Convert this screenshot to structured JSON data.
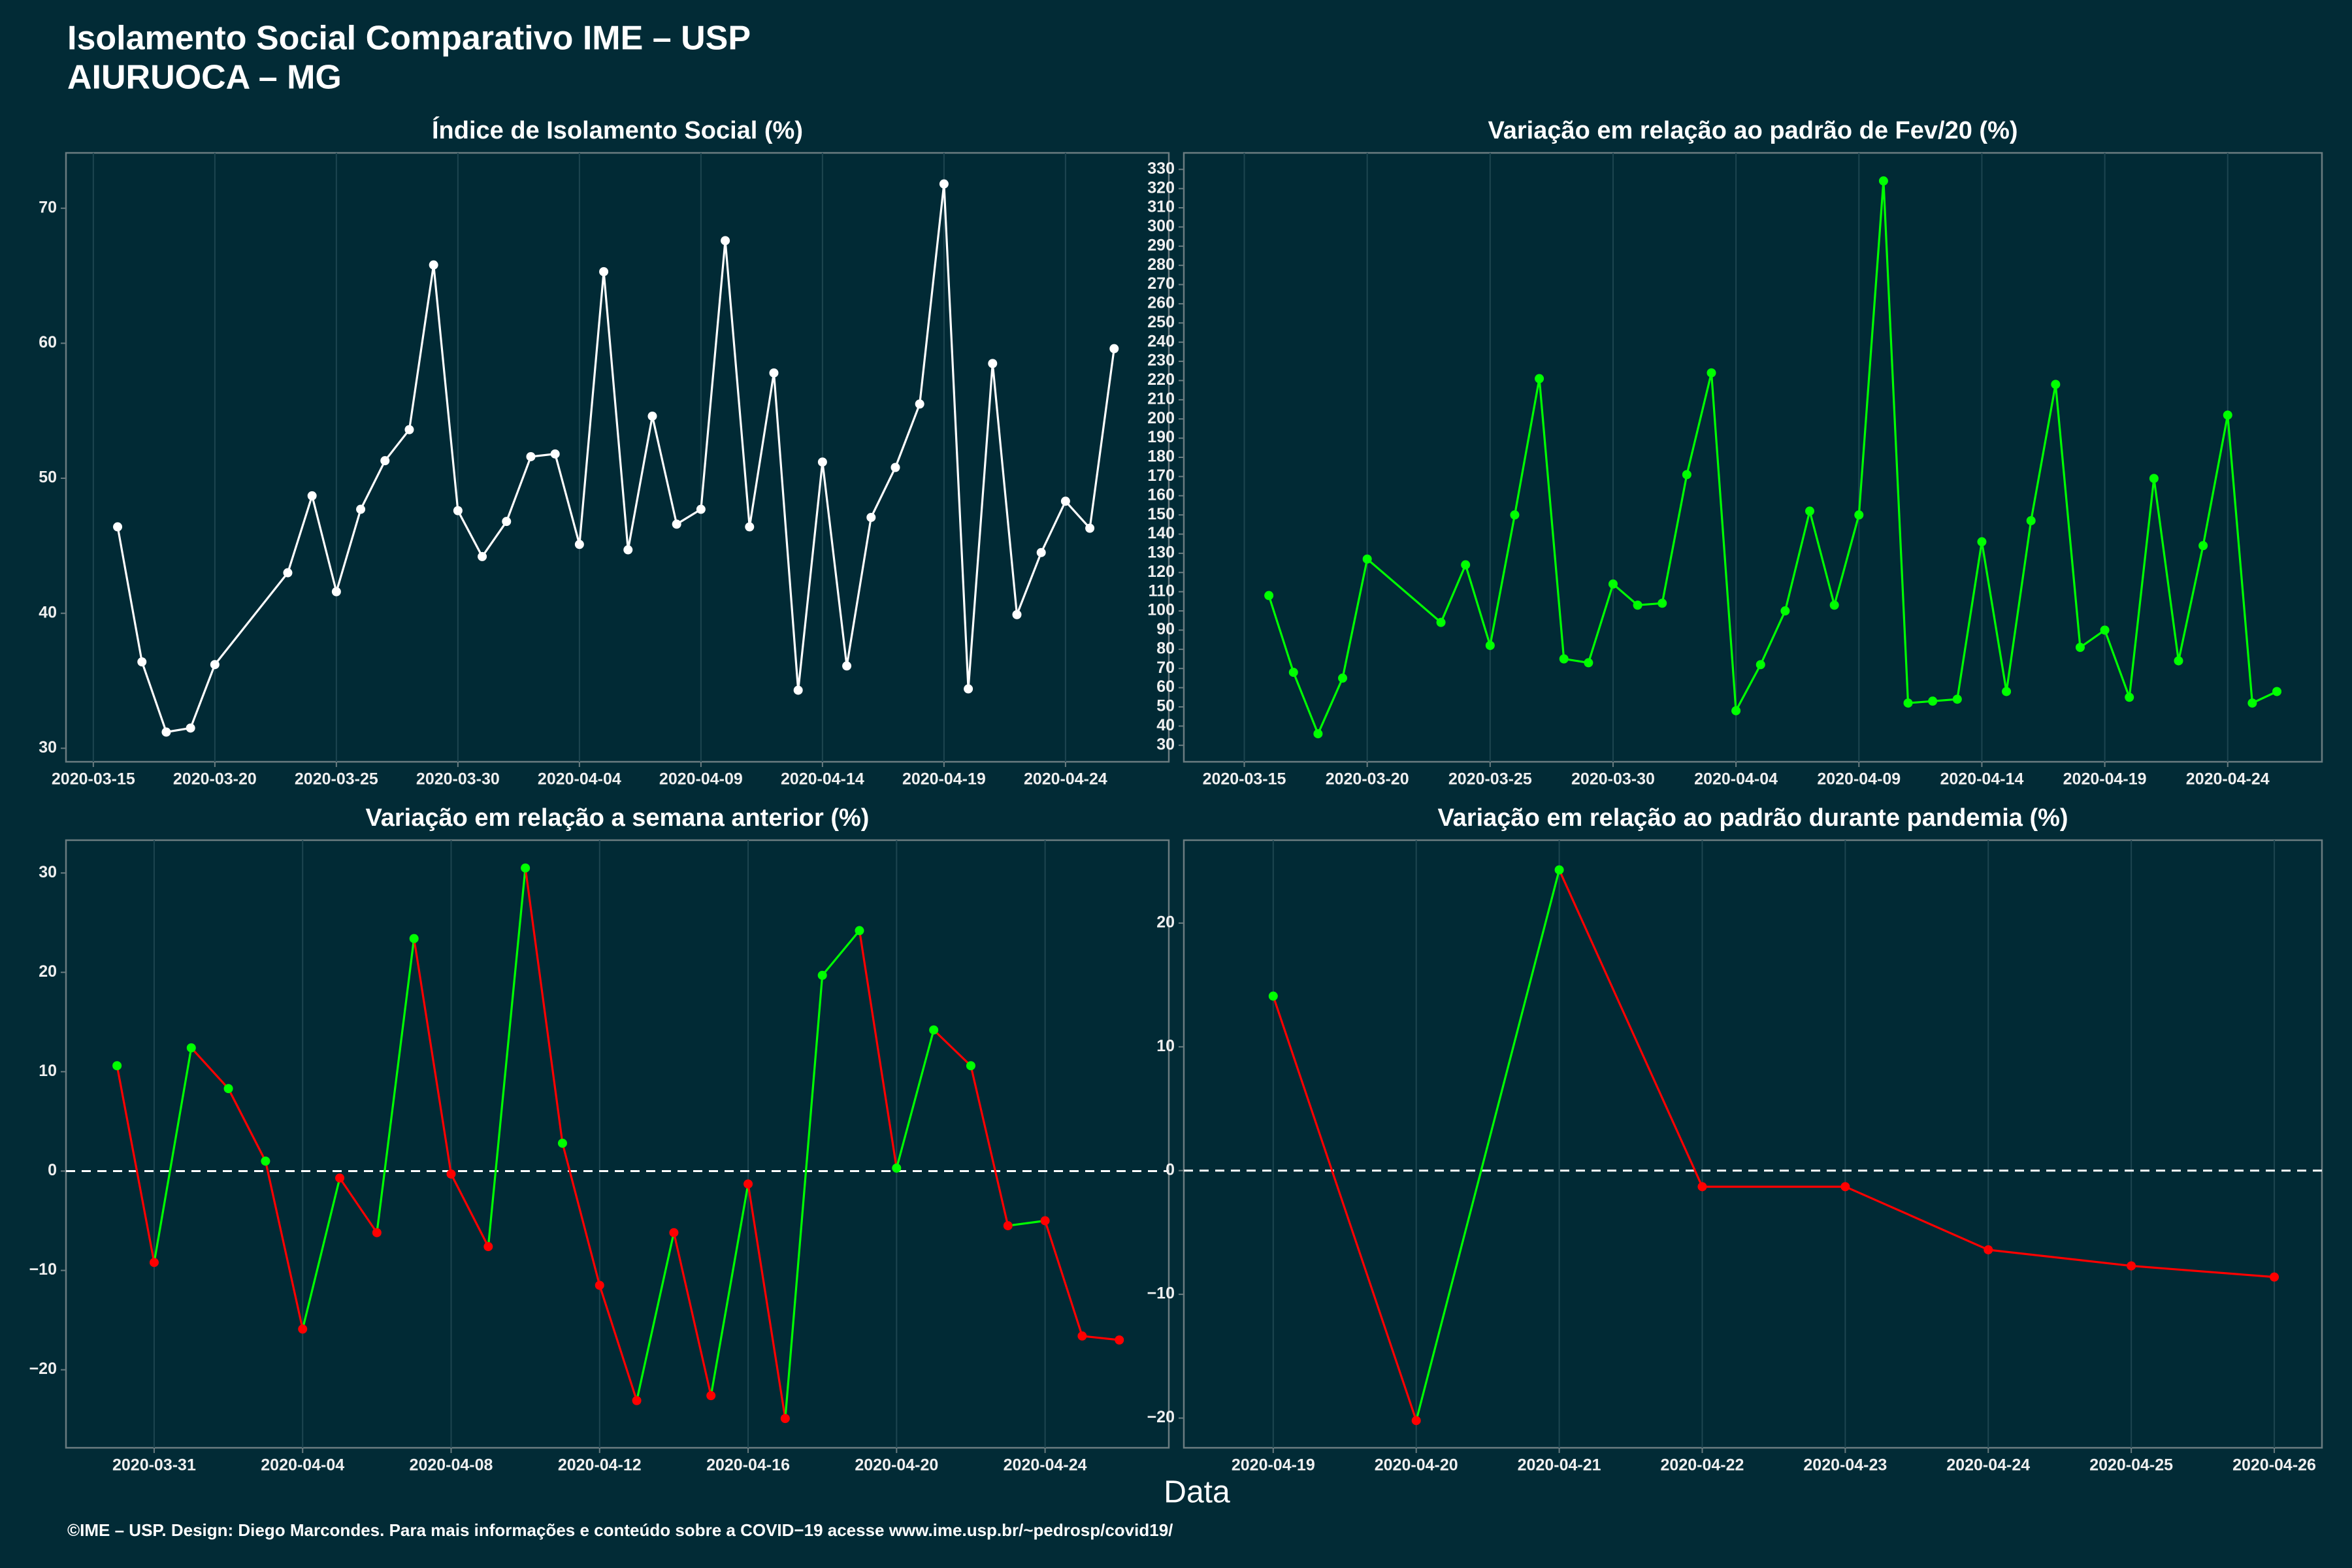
{
  "title": "Isolamento Social Comparativo IME – USP",
  "subtitle": "AIURUOCA – MG",
  "x_label": "Data",
  "footer": "©IME – USP. Design: Diego Marcondes. Para mais informações e conteúdo sobre a COVID−19 acesse www.ime.usp.br/~pedrosp/covid19/",
  "chart_data": [
    {
      "type": "line",
      "title": "Índice de Isolamento Social (%)",
      "color": "#ffffff",
      "grid": "x",
      "x": [
        "2020-03-16",
        "2020-03-17",
        "2020-03-18",
        "2020-03-19",
        "2020-03-20",
        "2020-03-23",
        "2020-03-24",
        "2020-03-25",
        "2020-03-26",
        "2020-03-27",
        "2020-03-28",
        "2020-03-29",
        "2020-03-30",
        "2020-03-31",
        "2020-04-01",
        "2020-04-02",
        "2020-04-03",
        "2020-04-04",
        "2020-04-05",
        "2020-04-06",
        "2020-04-07",
        "2020-04-08",
        "2020-04-09",
        "2020-04-10",
        "2020-04-11",
        "2020-04-12",
        "2020-04-13",
        "2020-04-14",
        "2020-04-15",
        "2020-04-16",
        "2020-04-17",
        "2020-04-18",
        "2020-04-19",
        "2020-04-20",
        "2020-04-21",
        "2020-04-22",
        "2020-04-23",
        "2020-04-24",
        "2020-04-25",
        "2020-04-26"
      ],
      "values": [
        46.4,
        36.4,
        31.2,
        31.5,
        36.2,
        43.0,
        48.7,
        41.6,
        47.7,
        51.3,
        53.6,
        65.8,
        47.6,
        44.2,
        46.8,
        51.6,
        51.8,
        45.1,
        65.3,
        44.7,
        54.6,
        46.6,
        47.7,
        67.6,
        46.4,
        57.8,
        34.3,
        51.2,
        36.1,
        47.1,
        50.8,
        55.5,
        71.8,
        34.4,
        58.5,
        39.9,
        44.5,
        48.3,
        46.3,
        59.6
      ],
      "xlim": [
        "2020-03-13T21:00",
        "2020-04-28T06:00"
      ],
      "xticks": [
        "2020-03-15",
        "2020-03-20",
        "2020-03-25",
        "2020-03-30",
        "2020-04-04",
        "2020-04-09",
        "2020-04-14",
        "2020-04-19",
        "2020-04-24"
      ],
      "ylim": [
        29,
        74.1
      ],
      "yticks": [
        30,
        40,
        50,
        60,
        70
      ]
    },
    {
      "type": "line",
      "title": "Variação em relação ao padrão de Fev/20 (%)",
      "color": "#00ff00",
      "grid": "x",
      "x": [
        "2020-03-16",
        "2020-03-17",
        "2020-03-18",
        "2020-03-19",
        "2020-03-20",
        "2020-03-23",
        "2020-03-24",
        "2020-03-25",
        "2020-03-26",
        "2020-03-27",
        "2020-03-28",
        "2020-03-29",
        "2020-03-30",
        "2020-03-31",
        "2020-04-01",
        "2020-04-02",
        "2020-04-03",
        "2020-04-04",
        "2020-04-05",
        "2020-04-06",
        "2020-04-07",
        "2020-04-08",
        "2020-04-09",
        "2020-04-10",
        "2020-04-11",
        "2020-04-12",
        "2020-04-13",
        "2020-04-14",
        "2020-04-15",
        "2020-04-16",
        "2020-04-17",
        "2020-04-18",
        "2020-04-19",
        "2020-04-20",
        "2020-04-21",
        "2020-04-22",
        "2020-04-23",
        "2020-04-24",
        "2020-04-25",
        "2020-04-26"
      ],
      "values": [
        108,
        68,
        36,
        65,
        127,
        94,
        124,
        82,
        150,
        221,
        75,
        73,
        114,
        103,
        104,
        171,
        224,
        48,
        72,
        100,
        152,
        103,
        150,
        324,
        52,
        53,
        54,
        136,
        58,
        147,
        218,
        81,
        90,
        55,
        169,
        74,
        134,
        202,
        52,
        58
      ],
      "xlim": [
        "2020-03-12T13:00",
        "2020-04-27T20:00"
      ],
      "xticks": [
        "2020-03-15",
        "2020-03-20",
        "2020-03-25",
        "2020-03-30",
        "2020-04-04",
        "2020-04-09",
        "2020-04-14",
        "2020-04-19",
        "2020-04-24"
      ],
      "ylim": [
        21.4,
        338.6
      ],
      "yticks": [
        30,
        40,
        50,
        60,
        70,
        80,
        90,
        100,
        110,
        120,
        130,
        140,
        150,
        160,
        170,
        180,
        190,
        200,
        210,
        220,
        230,
        240,
        250,
        260,
        270,
        280,
        290,
        300,
        310,
        320,
        330
      ]
    },
    {
      "type": "line",
      "title": "Variação em relação a semana anterior (%)",
      "positive_color": "#00ff00",
      "negative_color": "#ff0000",
      "grid": "x",
      "hline": 0,
      "x": [
        "2020-03-30",
        "2020-03-31",
        "2020-04-01",
        "2020-04-02",
        "2020-04-03",
        "2020-04-04",
        "2020-04-05",
        "2020-04-06",
        "2020-04-07",
        "2020-04-08",
        "2020-04-09",
        "2020-04-10",
        "2020-04-11",
        "2020-04-12",
        "2020-04-13",
        "2020-04-14",
        "2020-04-15",
        "2020-04-16",
        "2020-04-17",
        "2020-04-18",
        "2020-04-19",
        "2020-04-20",
        "2020-04-21",
        "2020-04-22",
        "2020-04-23",
        "2020-04-24",
        "2020-04-25",
        "2020-04-26"
      ],
      "values": [
        10.6,
        -9.2,
        12.4,
        8.3,
        1.0,
        -15.9,
        -0.7,
        -6.2,
        23.4,
        -0.3,
        -7.6,
        30.5,
        2.8,
        -11.5,
        -23.1,
        -6.2,
        -22.6,
        -1.3,
        -24.9,
        19.7,
        24.2,
        0.3,
        14.2,
        10.6,
        -5.5,
        -5.0,
        -16.6,
        -17.0
      ],
      "xlim": [
        "2020-03-28T15:00",
        "2020-04-27T08:00"
      ],
      "xticks": [
        "2020-03-31",
        "2020-04-04",
        "2020-04-08",
        "2020-04-12",
        "2020-04-16",
        "2020-04-20",
        "2020-04-24"
      ],
      "ylim": [
        -27.85,
        33.3
      ],
      "yticks": [
        {
          "value": -20,
          "label": "−20"
        },
        {
          "value": -10,
          "label": "−10"
        },
        0,
        10,
        20,
        30
      ]
    },
    {
      "type": "line",
      "title": "Variação em relação ao padrão durante pandemia (%)",
      "positive_color": "#00ff00",
      "negative_color": "#ff0000",
      "grid": "x",
      "hline": 0,
      "x": [
        "2020-04-19",
        "2020-04-20",
        "2020-04-21",
        "2020-04-22",
        "2020-04-23",
        "2020-04-24",
        "2020-04-25",
        "2020-04-26"
      ],
      "values": [
        14.1,
        -20.2,
        24.3,
        -1.3,
        -1.3,
        -6.4,
        -7.7,
        -8.6
      ],
      "xlim": [
        "2020-04-18T09:00",
        "2020-04-26T08:00"
      ],
      "xticks": [
        "2020-04-19",
        "2020-04-20",
        "2020-04-21",
        "2020-04-22",
        "2020-04-23",
        "2020-04-24",
        "2020-04-25",
        "2020-04-26"
      ],
      "ylim": [
        -22.4,
        26.7
      ],
      "yticks": [
        {
          "value": -20,
          "label": "−20"
        },
        {
          "value": -10,
          "label": "−10"
        },
        0,
        10,
        20
      ]
    }
  ]
}
